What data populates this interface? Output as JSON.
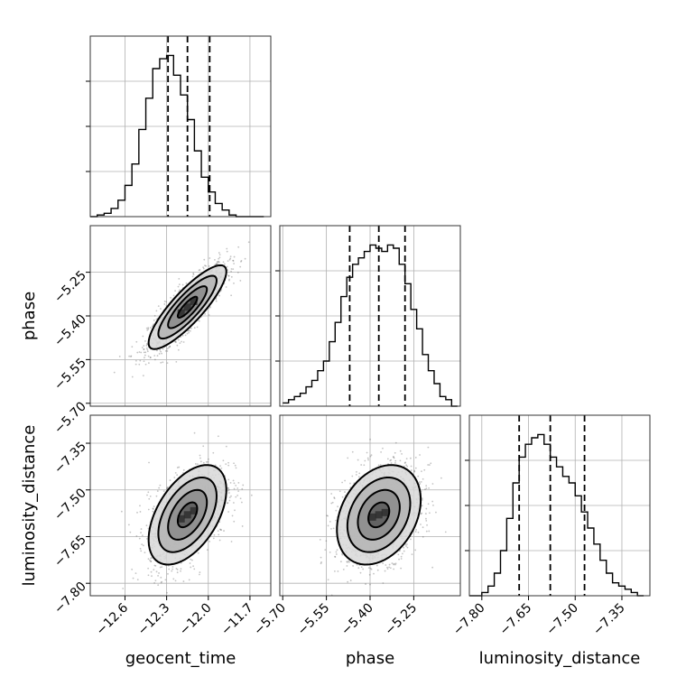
{
  "chart_data": {
    "type": "corner",
    "parameters": [
      {
        "key": "geocent_time",
        "label": "geocent_time",
        "range": [
          -12.85,
          -11.55
        ],
        "ticks": [
          -12.6,
          -12.3,
          -12.0,
          -11.7
        ],
        "tick_labels": [
          "−12.6",
          "−12.3",
          "−12.0",
          "−11.7"
        ],
        "quantiles": [
          -12.29,
          -12.15,
          -11.99
        ],
        "mean": -12.15,
        "sd": 0.14
      },
      {
        "key": "phase",
        "label": "phase",
        "range": [
          -5.71,
          -5.09
        ],
        "ticks": [
          -5.7,
          -5.55,
          -5.4,
          -5.25
        ],
        "tick_labels": [
          "−5.70",
          "−5.55",
          "−5.40",
          "−5.25"
        ],
        "quantiles": [
          -5.47,
          -5.37,
          -5.28
        ],
        "mean": -5.37,
        "sd": 0.072
      },
      {
        "key": "luminosity_distance",
        "label": "luminosity_distance",
        "range": [
          -7.84,
          -7.26
        ],
        "ticks": [
          -7.8,
          -7.65,
          -7.5,
          -7.35
        ],
        "tick_labels": [
          "−7.80",
          "−7.65",
          "−7.50",
          "−7.35"
        ],
        "quantiles": [
          -7.68,
          -7.58,
          -7.47
        ],
        "mean": -7.58,
        "sd": 0.08
      }
    ],
    "histograms": {
      "geocent_time": {
        "edges": [
          -12.85,
          -12.8,
          -12.75,
          -12.7,
          -12.65,
          -12.6,
          -12.55,
          -12.5,
          -12.45,
          -12.4,
          -12.35,
          -12.3,
          -12.25,
          -12.2,
          -12.15,
          -12.1,
          -12.05,
          -12.0,
          -11.95,
          -11.9,
          -11.85,
          -11.8,
          -11.75,
          -11.7,
          -11.65,
          -11.6
        ],
        "counts": [
          0,
          1,
          2,
          5,
          10,
          19,
          32,
          53,
          72,
          90,
          96,
          98,
          86,
          74,
          59,
          40,
          24,
          15,
          8,
          4,
          1,
          0,
          0,
          0,
          0
        ]
      },
      "phase": {
        "edges": [
          -5.7,
          -5.68,
          -5.66,
          -5.64,
          -5.62,
          -5.6,
          -5.58,
          -5.56,
          -5.54,
          -5.52,
          -5.5,
          -5.48,
          -5.46,
          -5.44,
          -5.42,
          -5.4,
          -5.38,
          -5.36,
          -5.34,
          -5.32,
          -5.3,
          -5.28,
          -5.26,
          -5.24,
          -5.22,
          -5.2,
          -5.18,
          -5.16,
          -5.14,
          -5.12,
          -5.1
        ],
        "counts": [
          1,
          2,
          3,
          4,
          6,
          8,
          11,
          14,
          20,
          26,
          34,
          40,
          44,
          46,
          48,
          50,
          49,
          48,
          50,
          49,
          44,
          38,
          30,
          24,
          16,
          11,
          7,
          3,
          2,
          0
        ]
      },
      "luminosity_distance": {
        "edges": [
          -7.84,
          -7.82,
          -7.8,
          -7.78,
          -7.76,
          -7.74,
          -7.72,
          -7.7,
          -7.68,
          -7.66,
          -7.64,
          -7.62,
          -7.6,
          -7.58,
          -7.56,
          -7.54,
          -7.52,
          -7.5,
          -7.48,
          -7.46,
          -7.44,
          -7.42,
          -7.4,
          -7.38,
          -7.36,
          -7.34,
          -7.32,
          -7.3,
          -7.28
        ],
        "counts": [
          0,
          0,
          1,
          3,
          7,
          14,
          24,
          35,
          43,
          47,
          49,
          50,
          47,
          43,
          40,
          37,
          35,
          31,
          26,
          21,
          16,
          11,
          7,
          4,
          3,
          2,
          1,
          0
        ]
      }
    },
    "pairs": [
      {
        "x": "geocent_time",
        "y": "phase",
        "correlation": 0.85
      },
      {
        "x": "geocent_time",
        "y": "luminosity_distance",
        "correlation": 0.5
      },
      {
        "x": "phase",
        "y": "luminosity_distance",
        "correlation": 0.3
      }
    ],
    "contour_levels_sigma": [
      0.5,
      1.0,
      1.5,
      2.0
    ],
    "grid": true
  }
}
